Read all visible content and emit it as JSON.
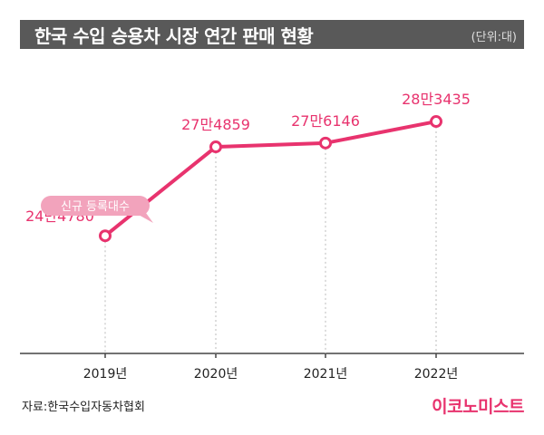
{
  "header": {
    "title": "한국 수입 승용차 시장 연간 판매 현황",
    "unit": "(단위:대)"
  },
  "chart_data": {
    "type": "line",
    "categories": [
      "2019년",
      "2020년",
      "2021년",
      "2022년"
    ],
    "series": [
      {
        "name": "신규 등록대수",
        "values": [
          244780,
          274859,
          276146,
          283435
        ],
        "labels": [
          "24만4780",
          "27만4859",
          "27만6146",
          "28만3435"
        ]
      }
    ],
    "title": "한국 수입 승용차 시장 연간 판매 현황",
    "xlabel": "",
    "ylabel": "",
    "ylim": [
      205000,
      300000
    ],
    "legend": "left"
  },
  "footer": {
    "source": "자료:한국수입자동차협회",
    "brand": "이코노미스트"
  },
  "colors": {
    "line": "#e8336e",
    "label": "#e8336e",
    "legend_bg": "#f2a3bc",
    "title_bg": "#595959"
  }
}
